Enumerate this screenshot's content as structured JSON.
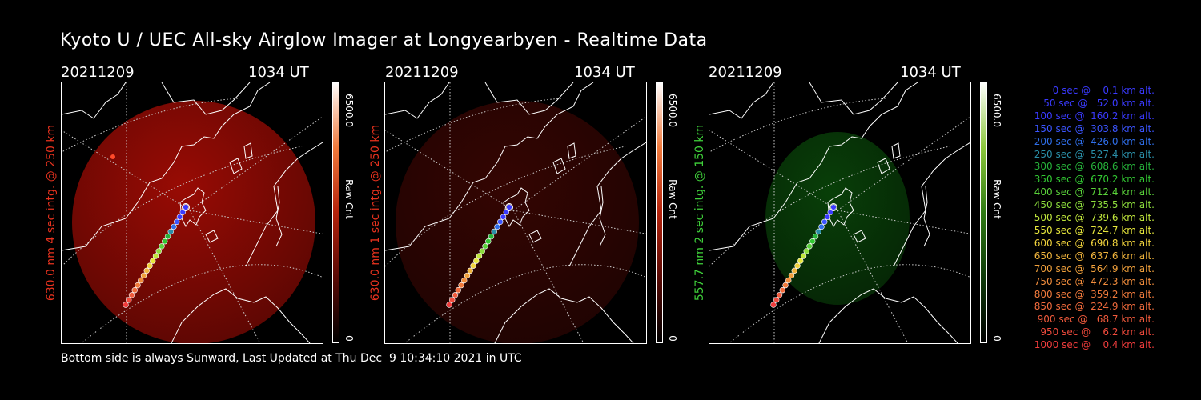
{
  "title": "Kyoto U / UEC All-sky Airglow Imager at Longyearbyen - Realtime Data",
  "footer": "Bottom side is always Sunward, Last Updated at Thu Dec  9 10:34:10 2021 in UTC",
  "panels": [
    {
      "date": "20211209",
      "time": "1034 UT",
      "ylabel": "630.0 nm 4 sec intg. @ 250 km",
      "label_color": "#e8321e",
      "colorbar_max": "6500.0",
      "colorbar_min": "0",
      "colorbar_label": "Raw Cnt",
      "glow": "#b30d05",
      "glow_opacity": 0.85
    },
    {
      "date": "20211209",
      "time": "1034 UT",
      "ylabel": "630.0 nm 1 sec intg. @ 250 km",
      "label_color": "#e8321e",
      "colorbar_max": "6500.0",
      "colorbar_min": "0",
      "colorbar_label": "Raw Cnt",
      "glow": "#3a0603",
      "glow_opacity": 0.9
    },
    {
      "date": "20211209",
      "time": "1034 UT",
      "ylabel": "557.7 nm 2 sec intg. @ 150 km",
      "label_color": "#3fd03a",
      "colorbar_max": "6500.0",
      "colorbar_min": "0",
      "colorbar_label": "Raw Cnt",
      "glow": "#0a4a0a",
      "glow_opacity": 0.85
    }
  ],
  "legend": [
    {
      "text": "   0 sec @    0.1 km alt.",
      "color": "#3a3aff"
    },
    {
      "text": "  50 sec @   52.0 km alt.",
      "color": "#3a3aff"
    },
    {
      "text": " 100 sec @  160.2 km alt.",
      "color": "#3a3aff"
    },
    {
      "text": " 150 sec @  303.8 km alt.",
      "color": "#3b55ff"
    },
    {
      "text": " 200 sec @  426.0 km alt.",
      "color": "#2f6ee8"
    },
    {
      "text": " 250 sec @  527.4 km alt.",
      "color": "#2a8fa8"
    },
    {
      "text": " 300 sec @  608.6 km alt.",
      "color": "#26b23a"
    },
    {
      "text": " 350 sec @  670.2 km alt.",
      "color": "#32c832"
    },
    {
      "text": " 400 sec @  712.4 km alt.",
      "color": "#5ad23a"
    },
    {
      "text": " 450 sec @  735.5 km alt.",
      "color": "#8cdc3c"
    },
    {
      "text": " 500 sec @  739.6 km alt.",
      "color": "#c0e63c"
    },
    {
      "text": " 550 sec @  724.7 km alt.",
      "color": "#e6e63c"
    },
    {
      "text": " 600 sec @  690.8 km alt.",
      "color": "#f0d23c"
    },
    {
      "text": " 650 sec @  637.6 km alt.",
      "color": "#f0b43c"
    },
    {
      "text": " 700 sec @  564.9 km alt.",
      "color": "#f0a03c"
    },
    {
      "text": " 750 sec @  472.3 km alt.",
      "color": "#f08c3c"
    },
    {
      "text": " 800 sec @  359.2 km alt.",
      "color": "#f07a3c"
    },
    {
      "text": " 850 sec @  224.9 km alt.",
      "color": "#f06a3c"
    },
    {
      "text": " 900 sec @   68.7 km alt.",
      "color": "#f05a3c"
    },
    {
      "text": " 950 sec @    6.2 km alt.",
      "color": "#f04a3c"
    },
    {
      "text": "1000 sec @    0.4 km alt.",
      "color": "#f03c3c"
    }
  ],
  "icons": {
    "panel_image": "all-sky-airglow-image",
    "coastline": "coastline-map-overlay",
    "rocket_track": "rocket-trajectory-track"
  }
}
